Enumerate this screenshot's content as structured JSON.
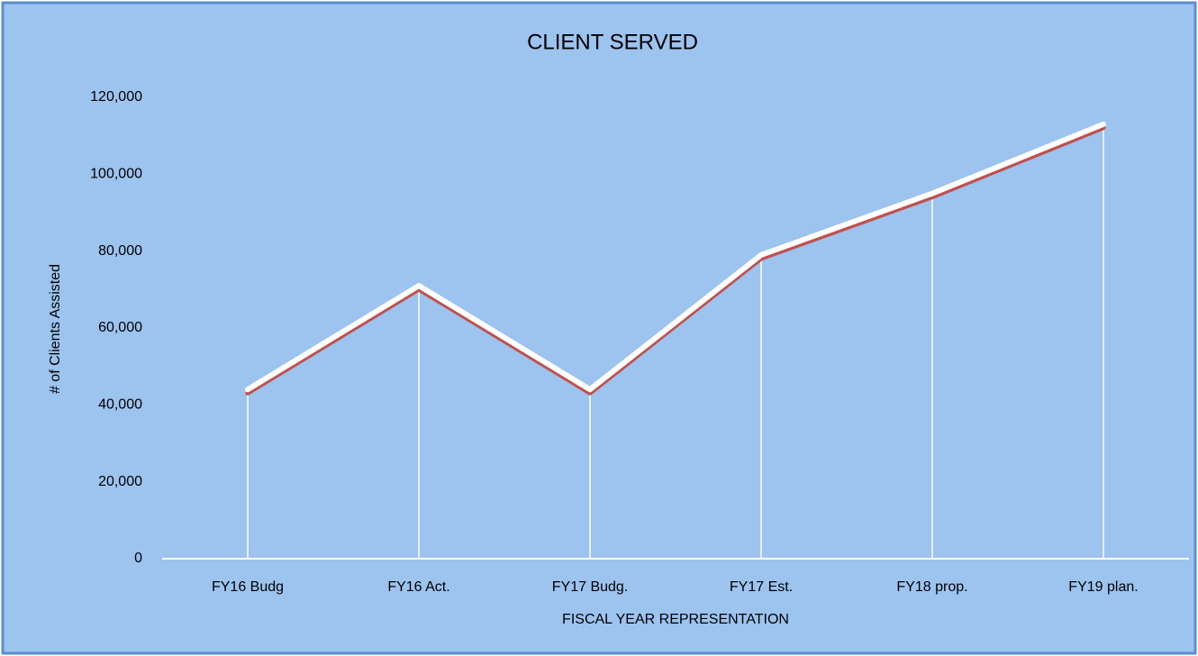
{
  "chart_data": {
    "type": "line",
    "title": "CLIENT SERVED",
    "x_label": "FISCAL YEAR REPRESENTATION",
    "y_label": "# of Clients Assisted",
    "categories": [
      "FY16 Budg",
      "FY16 Act.",
      "FY17 Budg.",
      "FY17 Est.",
      "FY18 prop.",
      "FY19 plan."
    ],
    "series": [
      {
        "name": "Clients",
        "color": "#ffffff",
        "shadow_color": "#c0504d",
        "values": [
          44000,
          71000,
          44000,
          79000,
          95000,
          113000
        ]
      }
    ],
    "ylim": [
      0,
      120000
    ],
    "yticks": [
      0,
      {
        "value": 20000,
        "label": "20,000"
      },
      {
        "value": 40000,
        "label": "40,000"
      },
      {
        "value": 60000,
        "label": "60,000"
      },
      {
        "value": 80000,
        "label": "80,000"
      },
      {
        "value": 100000,
        "label": "100,000"
      },
      {
        "value": 120000,
        "label": "120,000"
      }
    ],
    "drop_lines": true
  }
}
